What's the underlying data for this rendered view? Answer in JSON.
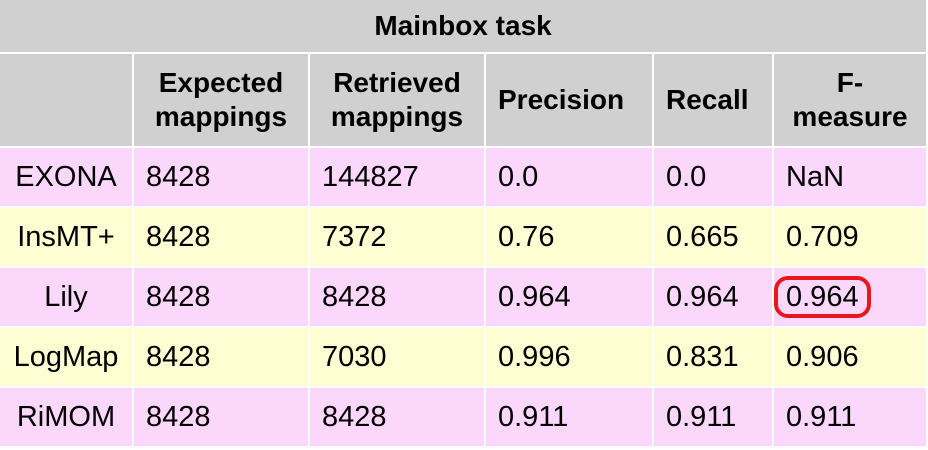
{
  "title": "Mainbox task",
  "headers": {
    "system": "",
    "expected_line1": "Expected",
    "expected_line2": "mappings",
    "retrieved_line1": "Retrieved",
    "retrieved_line2": "mappings",
    "precision": "Precision",
    "recall": "Recall",
    "fmeasure_line1": "F-",
    "fmeasure_line2": "measure"
  },
  "rows": [
    {
      "system": "EXONA",
      "expected": "8428",
      "retrieved": "144827",
      "precision": "0.0",
      "recall": "0.0",
      "fmeasure": "NaN",
      "highlighted": false
    },
    {
      "system": "InsMT+",
      "expected": "8428",
      "retrieved": "7372",
      "precision": "0.76",
      "recall": "0.665",
      "fmeasure": "0.709",
      "highlighted": false
    },
    {
      "system": "Lily",
      "expected": "8428",
      "retrieved": "8428",
      "precision": "0.964",
      "recall": "0.964",
      "fmeasure": "0.964",
      "highlighted": true
    },
    {
      "system": "LogMap",
      "expected": "8428",
      "retrieved": "7030",
      "precision": "0.996",
      "recall": "0.831",
      "fmeasure": "0.906",
      "highlighted": false
    },
    {
      "system": "RiMOM",
      "expected": "8428",
      "retrieved": "8428",
      "precision": "0.911",
      "recall": "0.911",
      "fmeasure": "0.911",
      "highlighted": false
    }
  ],
  "colors": {
    "header_bg": "#d0d0d0",
    "row_pink": "#fbd8fb",
    "row_yellow": "#fefed2",
    "highlight": "#e8171e"
  }
}
